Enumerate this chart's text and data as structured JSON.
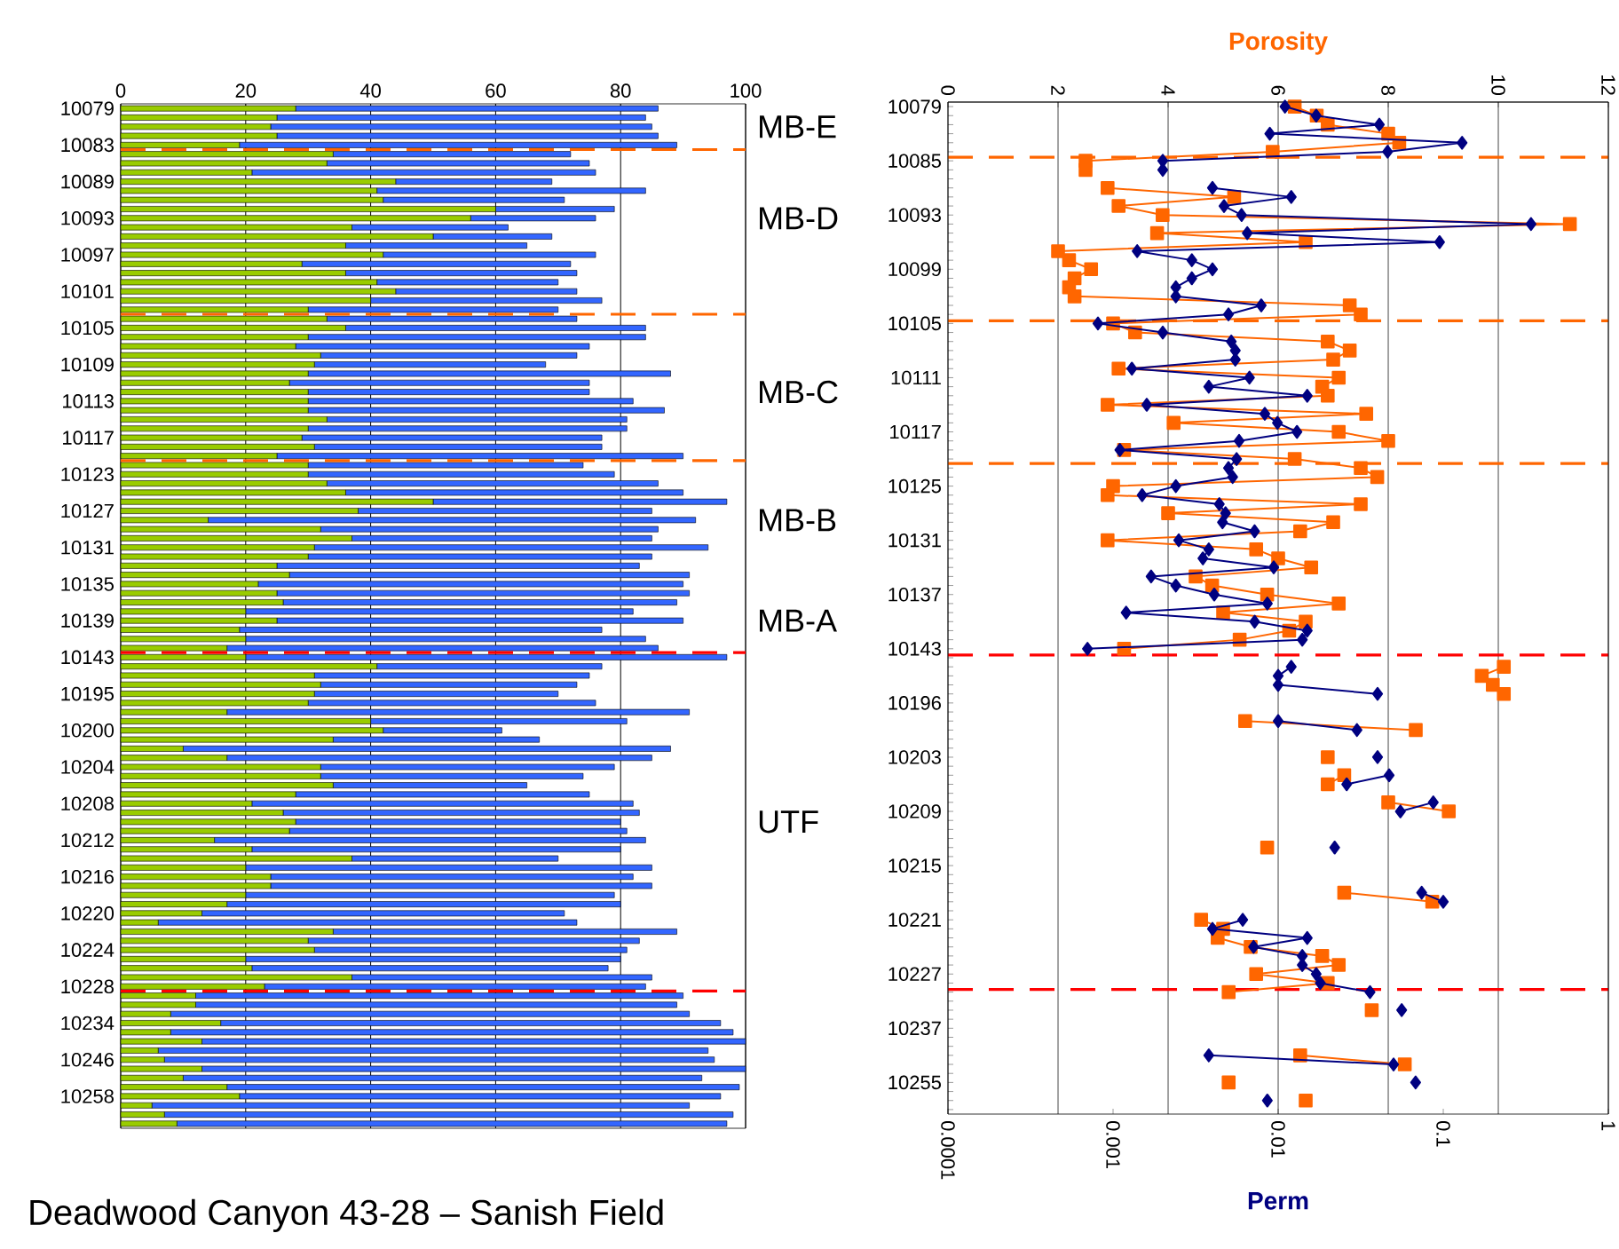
{
  "chart_data": [
    {
      "type": "bar",
      "orientation": "horizontal",
      "stacked": true,
      "title": "Deadwood Canyon 43-28 – Sanish Field",
      "categories": [
        "10079",
        null,
        null,
        null,
        "10083",
        null,
        null,
        null,
        "10089",
        null,
        null,
        null,
        "10093",
        null,
        null,
        null,
        "10097",
        null,
        null,
        null,
        "10101",
        null,
        null,
        null,
        "10105",
        null,
        null,
        null,
        "10109",
        null,
        null,
        null,
        "10113",
        null,
        null,
        null,
        "10117",
        null,
        null,
        null,
        "10123",
        null,
        null,
        null,
        "10127",
        null,
        null,
        null,
        "10131",
        null,
        null,
        null,
        "10135",
        null,
        null,
        null,
        "10139",
        null,
        null,
        null,
        "10143",
        null,
        null,
        null,
        "10195",
        null,
        null,
        null,
        "10200",
        null,
        null,
        null,
        "10204",
        null,
        null,
        null,
        "10208",
        null,
        null,
        null,
        "10212",
        null,
        null,
        null,
        "10216",
        null,
        null,
        null,
        "10220",
        null,
        null,
        null,
        "10224",
        null,
        null,
        null,
        "10228",
        null,
        null,
        null,
        "10234",
        null,
        null,
        null,
        "10246",
        null,
        null,
        null,
        "10258",
        null,
        null,
        null
      ],
      "series": [
        {
          "color": "#99cc00",
          "values": [
            28,
            25,
            24,
            25,
            19,
            34,
            33,
            21,
            44,
            41,
            42,
            60,
            56,
            37,
            50,
            36,
            42,
            29,
            36,
            41,
            44,
            40,
            30,
            33,
            36,
            30,
            28,
            32,
            31,
            30,
            27,
            30,
            30,
            30,
            33,
            30,
            29,
            31,
            25,
            30,
            30,
            33,
            36,
            50,
            38,
            14,
            32,
            37,
            31,
            30,
            25,
            27,
            22,
            25,
            26,
            20,
            25,
            19,
            20,
            17,
            20,
            41,
            31,
            32,
            31,
            30,
            17,
            40,
            42,
            34,
            10,
            17,
            32,
            32,
            34,
            28,
            21,
            26,
            28,
            27,
            15,
            21,
            37,
            20,
            24,
            24,
            20,
            17,
            13,
            6,
            34,
            30,
            31,
            20,
            21,
            37,
            23,
            12,
            12,
            8,
            16,
            8,
            13,
            6,
            7,
            13,
            10,
            17,
            19,
            5,
            7,
            9
          ]
        },
        {
          "color": "#3366ff",
          "values": [
            58,
            59,
            61,
            61,
            70,
            38,
            42,
            55,
            25,
            43,
            29,
            19,
            20,
            25,
            19,
            29,
            34,
            43,
            37,
            29,
            29,
            37,
            40,
            40,
            48,
            54,
            47,
            41,
            37,
            58,
            48,
            45,
            52,
            57,
            48,
            51,
            48,
            46,
            65,
            44,
            49,
            53,
            54,
            47,
            47,
            78,
            54,
            48,
            63,
            55,
            58,
            64,
            68,
            66,
            63,
            62,
            65,
            58,
            64,
            69,
            77,
            36,
            44,
            41,
            39,
            46,
            74,
            41,
            19,
            33,
            78,
            68,
            47,
            42,
            31,
            47,
            61,
            57,
            52,
            54,
            69,
            59,
            33,
            65,
            58,
            61,
            59,
            63,
            58,
            67,
            55,
            53,
            50,
            60,
            57,
            48,
            61,
            78,
            77,
            83,
            80,
            90,
            87,
            88,
            88,
            87,
            83,
            82,
            77,
            86,
            91,
            88
          ]
        }
      ],
      "xlim": [
        0,
        100
      ],
      "xticks": [
        0,
        20,
        40,
        60,
        80,
        100
      ],
      "grid": "x",
      "annotations": [
        "MB-E",
        "MB-D",
        "MB-C",
        "MB-B",
        "MB-A",
        "UTF"
      ]
    },
    {
      "type": "line",
      "orientation": "horizontal",
      "xlabel": "Perm",
      "x2label": "Porosity",
      "log": "x",
      "grid": "x2",
      "categories": [
        "10079",
        null,
        null,
        null,
        null,
        null,
        "10085",
        null,
        null,
        null,
        null,
        null,
        "10093",
        null,
        null,
        null,
        null,
        null,
        "10099",
        null,
        null,
        null,
        null,
        null,
        "10105",
        null,
        null,
        null,
        null,
        null,
        "10111",
        null,
        null,
        null,
        null,
        null,
        "10117",
        null,
        null,
        null,
        null,
        null,
        "10125",
        null,
        null,
        null,
        null,
        null,
        "10131",
        null,
        null,
        null,
        null,
        null,
        "10137",
        null,
        null,
        null,
        null,
        null,
        "10143",
        null,
        null,
        null,
        null,
        null,
        "10196",
        null,
        null,
        null,
        null,
        null,
        "10203",
        null,
        null,
        null,
        null,
        null,
        "10209",
        null,
        null,
        null,
        null,
        null,
        "10215",
        null,
        null,
        null,
        null,
        null,
        "10221",
        null,
        null,
        null,
        null,
        null,
        "10227",
        null,
        null,
        null,
        null,
        null,
        "10237",
        null,
        null,
        null,
        null,
        null,
        "10255",
        null,
        null,
        null
      ],
      "series": [
        {
          "color": "#ff6600",
          "axis": "x2",
          "marker": "square",
          "values": [
            6.3,
            6.7,
            6.9,
            8.0,
            8.2,
            5.9,
            2.5,
            2.5,
            null,
            2.9,
            5.2,
            3.1,
            3.9,
            11.3,
            3.8,
            6.5,
            2.0,
            2.2,
            2.6,
            2.3,
            2.2,
            2.3,
            7.3,
            7.5,
            3.0,
            3.4,
            6.9,
            7.3,
            7.0,
            3.1,
            7.1,
            6.8,
            6.9,
            2.9,
            7.6,
            4.1,
            7.1,
            8.0,
            3.2,
            6.3,
            7.5,
            7.8,
            3.0,
            2.9,
            7.5,
            4.0,
            7.0,
            6.4,
            2.9,
            5.6,
            6.0,
            6.6,
            4.5,
            4.8,
            5.8,
            7.1,
            5.0,
            6.5,
            6.2,
            5.3,
            3.2,
            null,
            10.1,
            9.7,
            9.9,
            10.1,
            null,
            null,
            5.4,
            8.5,
            null,
            null,
            6.9,
            null,
            7.2,
            6.9,
            null,
            8.0,
            9.1,
            null,
            null,
            null,
            5.8,
            null,
            null,
            null,
            null,
            7.2,
            8.8,
            null,
            4.6,
            5.0,
            4.9,
            5.5,
            6.8,
            7.1,
            5.6,
            6.9,
            5.1,
            null,
            7.7,
            null,
            null,
            null,
            null,
            6.4,
            8.3,
            null,
            5.1,
            null,
            6.5,
            null
          ]
        },
        {
          "color": "#000080",
          "marker": "diamond",
          "values": [
            0.011,
            0.017,
            0.041,
            0.0089,
            0.13,
            0.046,
            0.002,
            0.002,
            null,
            0.004,
            0.012,
            0.0047,
            0.006,
            0.34,
            0.0065,
            0.095,
            0.0014,
            0.003,
            0.004,
            0.003,
            0.0024,
            0.0024,
            0.0079,
            0.005,
            0.00081,
            0.002,
            0.0052,
            0.0055,
            0.0055,
            0.0013,
            0.0067,
            0.0038,
            0.015,
            0.0016,
            0.0083,
            0.0099,
            0.013,
            0.0058,
            0.0011,
            0.0056,
            0.005,
            0.0053,
            0.0024,
            0.0015,
            0.0044,
            0.0048,
            0.0046,
            0.0072,
            0.0025,
            0.0038,
            0.0035,
            0.0094,
            0.0017,
            0.0024,
            0.0041,
            0.0086,
            0.0012,
            0.0072,
            0.015,
            0.014,
            0.0007,
            null,
            0.012,
            0.01,
            0.01,
            0.04,
            null,
            null,
            0.01,
            0.03,
            null,
            null,
            0.04,
            null,
            0.047,
            0.026,
            null,
            0.087,
            0.055,
            null,
            null,
            null,
            0.022,
            null,
            null,
            null,
            null,
            0.074,
            0.1,
            null,
            0.0061,
            0.004,
            0.015,
            0.0071,
            0.014,
            0.014,
            0.017,
            0.018,
            0.036,
            null,
            0.056,
            null,
            null,
            null,
            null,
            0.0038,
            0.05,
            null,
            0.068,
            null,
            0.0086,
            null
          ]
        }
      ],
      "xlim": [
        0.0001,
        1
      ],
      "xticks": [
        0.0001,
        0.001,
        0.01,
        0.1,
        1
      ],
      "x2lim": [
        0,
        12
      ],
      "x2ticks": [
        0,
        2,
        4,
        6,
        8,
        10,
        12
      ]
    }
  ]
}
